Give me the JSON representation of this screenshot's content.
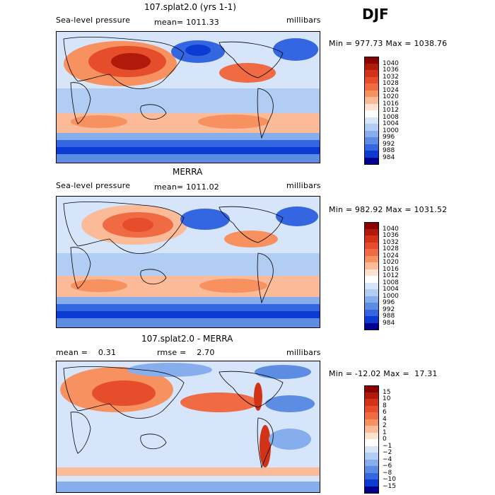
{
  "season": "DJF",
  "panels": [
    {
      "title": "107.splat2.0 (yrs 1-1)",
      "left": "Sea-level pressure",
      "center": "mean= 1011.33",
      "right": "millibars",
      "minmax": "Min = 977.73 Max = 1038.76",
      "colorbar": {
        "levels": [
          "1040",
          "1036",
          "1032",
          "1028",
          "1024",
          "1020",
          "1016",
          "1012",
          "1008",
          "1004",
          "1000",
          "996",
          "992",
          "988",
          "984"
        ],
        "colors": [
          "#8b0000",
          "#b01a0a",
          "#d23216",
          "#e64d2a",
          "#f06a44",
          "#f7915f",
          "#fbbb98",
          "#fde3cf",
          "#ffffff",
          "#d6e5f9",
          "#b1cdf3",
          "#86aeec",
          "#5d8ce3",
          "#3366e0",
          "#0c3bd3",
          "#00008f"
        ]
      }
    },
    {
      "title": "MERRA",
      "left": "Sea-level pressure",
      "center": "mean= 1011.02",
      "right": "millibars",
      "minmax": "Min = 982.92 Max = 1031.52",
      "colorbar": {
        "levels": [
          "1040",
          "1036",
          "1032",
          "1028",
          "1024",
          "1020",
          "1016",
          "1012",
          "1008",
          "1004",
          "1000",
          "996",
          "992",
          "988",
          "984"
        ],
        "colors": [
          "#8b0000",
          "#b01a0a",
          "#d23216",
          "#e64d2a",
          "#f06a44",
          "#f7915f",
          "#fbbb98",
          "#fde3cf",
          "#ffffff",
          "#d6e5f9",
          "#b1cdf3",
          "#86aeec",
          "#5d8ce3",
          "#3366e0",
          "#0c3bd3",
          "#00008f"
        ]
      }
    },
    {
      "title": "107.splat2.0 - MERRA",
      "left": "mean =    0.31",
      "center": "rmse =    2.70",
      "right": "millibars",
      "minmax": "Min = -12.02 Max =  17.31",
      "colorbar": {
        "levels": [
          "15",
          "10",
          "8",
          "6",
          "4",
          "2",
          "1",
          "0",
          "−1",
          "−2",
          "−4",
          "−6",
          "−8",
          "−10",
          "−15"
        ],
        "colors": [
          "#8b0000",
          "#b01a0a",
          "#d23216",
          "#e64d2a",
          "#f06a44",
          "#f7915f",
          "#fbbb98",
          "#fde3cf",
          "#ffffff",
          "#d6e5f9",
          "#b1cdf3",
          "#86aeec",
          "#5d8ce3",
          "#3366e0",
          "#0c3bd3",
          "#00008f"
        ]
      }
    }
  ],
  "chart_data": [
    {
      "type": "heatmap",
      "title": "107.splat2.0 (yrs 1-1)",
      "variable": "Sea-level pressure",
      "units": "millibars",
      "mean": 1011.33,
      "min": 977.73,
      "max": 1038.76,
      "contour_levels": [
        984,
        988,
        992,
        996,
        1000,
        1004,
        1008,
        1012,
        1016,
        1020,
        1024,
        1028,
        1032,
        1036,
        1040
      ]
    },
    {
      "type": "heatmap",
      "title": "MERRA",
      "variable": "Sea-level pressure",
      "units": "millibars",
      "mean": 1011.02,
      "min": 982.92,
      "max": 1031.52,
      "contour_levels": [
        984,
        988,
        992,
        996,
        1000,
        1004,
        1008,
        1012,
        1016,
        1020,
        1024,
        1028,
        1032,
        1036,
        1040
      ]
    },
    {
      "type": "heatmap",
      "title": "107.splat2.0 - MERRA",
      "units": "millibars",
      "mean": 0.31,
      "rmse": 2.7,
      "min": -12.02,
      "max": 17.31,
      "contour_levels": [
        -15,
        -10,
        -8,
        -6,
        -4,
        -2,
        -1,
        0,
        1,
        2,
        4,
        6,
        8,
        10,
        15
      ]
    }
  ]
}
